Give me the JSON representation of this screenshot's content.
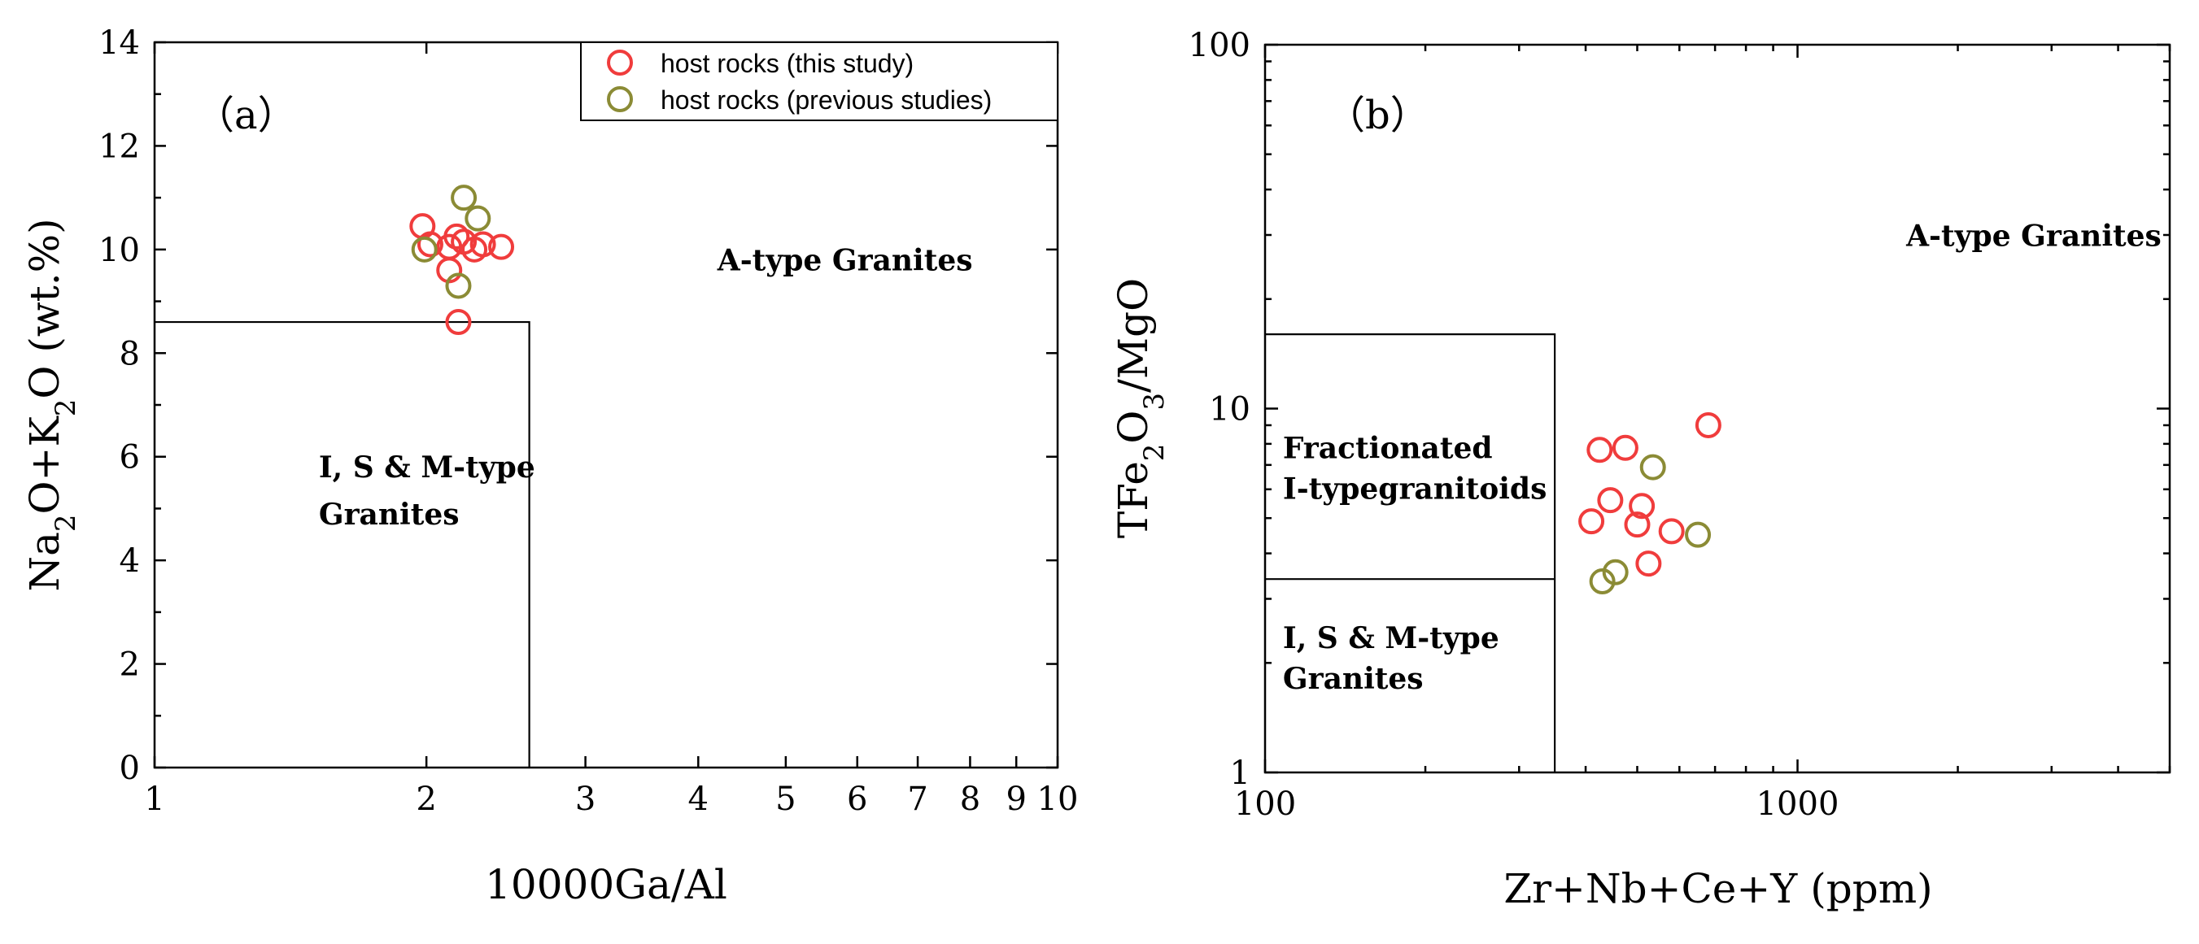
{
  "chart_data": [
    {
      "panel": "a",
      "type": "scatter",
      "panel_label": "（a）",
      "xlabel": "10000Ga/Al",
      "ylabel": "Na2O+K2O (wt.%)",
      "xscale": "log",
      "xlim": [
        1,
        10
      ],
      "ylim": [
        0,
        14
      ],
      "x_ticks": [
        1,
        2,
        3,
        4,
        5,
        6,
        7,
        8,
        9,
        10
      ],
      "x_tick_labels": [
        "1",
        "2",
        "3",
        "4",
        "5",
        "6",
        "7",
        "8",
        "9",
        "10"
      ],
      "y_ticks": [
        0,
        2,
        4,
        6,
        8,
        10,
        12,
        14
      ],
      "y_tick_labels": [
        "0",
        "2",
        "4",
        "6",
        "8",
        "10",
        "12",
        "14"
      ],
      "field_boundary": {
        "x_max": 2.6,
        "y_max": 8.6
      },
      "fields": [
        {
          "lines": [
            "A-type Granites"
          ],
          "x": 4.2,
          "y": 9.6
        },
        {
          "lines": [
            "I, S & M-type",
            "Granites"
          ],
          "x": 1.52,
          "y": 5.6
        }
      ],
      "legend": {
        "position": "top-right",
        "entries": [
          {
            "label": "host rocks (this study)",
            "color": "#f03c3c"
          },
          {
            "label": "host rocks (previous studies)",
            "color": "#8b8b35"
          }
        ]
      },
      "series": [
        {
          "name": "host rocks (this study)",
          "color": "#f03c3c",
          "points": [
            [
              1.98,
              10.45
            ],
            [
              2.02,
              10.1
            ],
            [
              2.12,
              10.05
            ],
            [
              2.16,
              10.25
            ],
            [
              2.2,
              10.15
            ],
            [
              2.26,
              10.0
            ],
            [
              2.31,
              10.1
            ],
            [
              2.42,
              10.05
            ],
            [
              2.12,
              9.6
            ],
            [
              2.17,
              8.6
            ]
          ]
        },
        {
          "name": "host rocks (previous studies)",
          "color": "#8b8b35",
          "points": [
            [
              2.2,
              11.0
            ],
            [
              2.28,
              10.6
            ],
            [
              1.99,
              10.0
            ],
            [
              2.17,
              9.3
            ]
          ]
        }
      ]
    },
    {
      "panel": "b",
      "type": "scatter",
      "panel_label": "（b）",
      "xlabel": "Zr+Nb+Ce+Y (ppm)",
      "ylabel": "TFe2O3/MgO",
      "xscale": "log",
      "yscale": "log",
      "xlim": [
        100,
        5000
      ],
      "ylim": [
        1,
        100
      ],
      "x_ticks": [
        100,
        1000
      ],
      "x_tick_labels": [
        "100",
        "1000"
      ],
      "y_ticks": [
        1,
        10,
        100
      ],
      "y_tick_labels": [
        "1",
        "10",
        "100"
      ],
      "field_boundary": {
        "x_max": 350,
        "y_upper": 16,
        "y_lower": 3.4
      },
      "fields": [
        {
          "lines": [
            "A-type Granites"
          ],
          "x": 1600,
          "y": 28
        },
        {
          "lines": [
            "Fractionated",
            "I-typegranitoids"
          ],
          "x": 108,
          "y": 7.3
        },
        {
          "lines": [
            "I, S & M-type",
            "Granites"
          ],
          "x": 108,
          "y": 2.2
        }
      ],
      "series": [
        {
          "name": "host rocks (this study)",
          "color": "#f03c3c",
          "points": [
            [
              425,
              7.7
            ],
            [
              475,
              7.8
            ],
            [
              680,
              9.0
            ],
            [
              410,
              4.9
            ],
            [
              445,
              5.6
            ],
            [
              510,
              5.4
            ],
            [
              500,
              4.8
            ],
            [
              580,
              4.6
            ],
            [
              525,
              3.75
            ]
          ]
        },
        {
          "name": "host rocks (previous studies)",
          "color": "#8b8b35",
          "points": [
            [
              535,
              6.9
            ],
            [
              650,
              4.5
            ],
            [
              455,
              3.55
            ],
            [
              430,
              3.35
            ]
          ]
        }
      ]
    }
  ]
}
